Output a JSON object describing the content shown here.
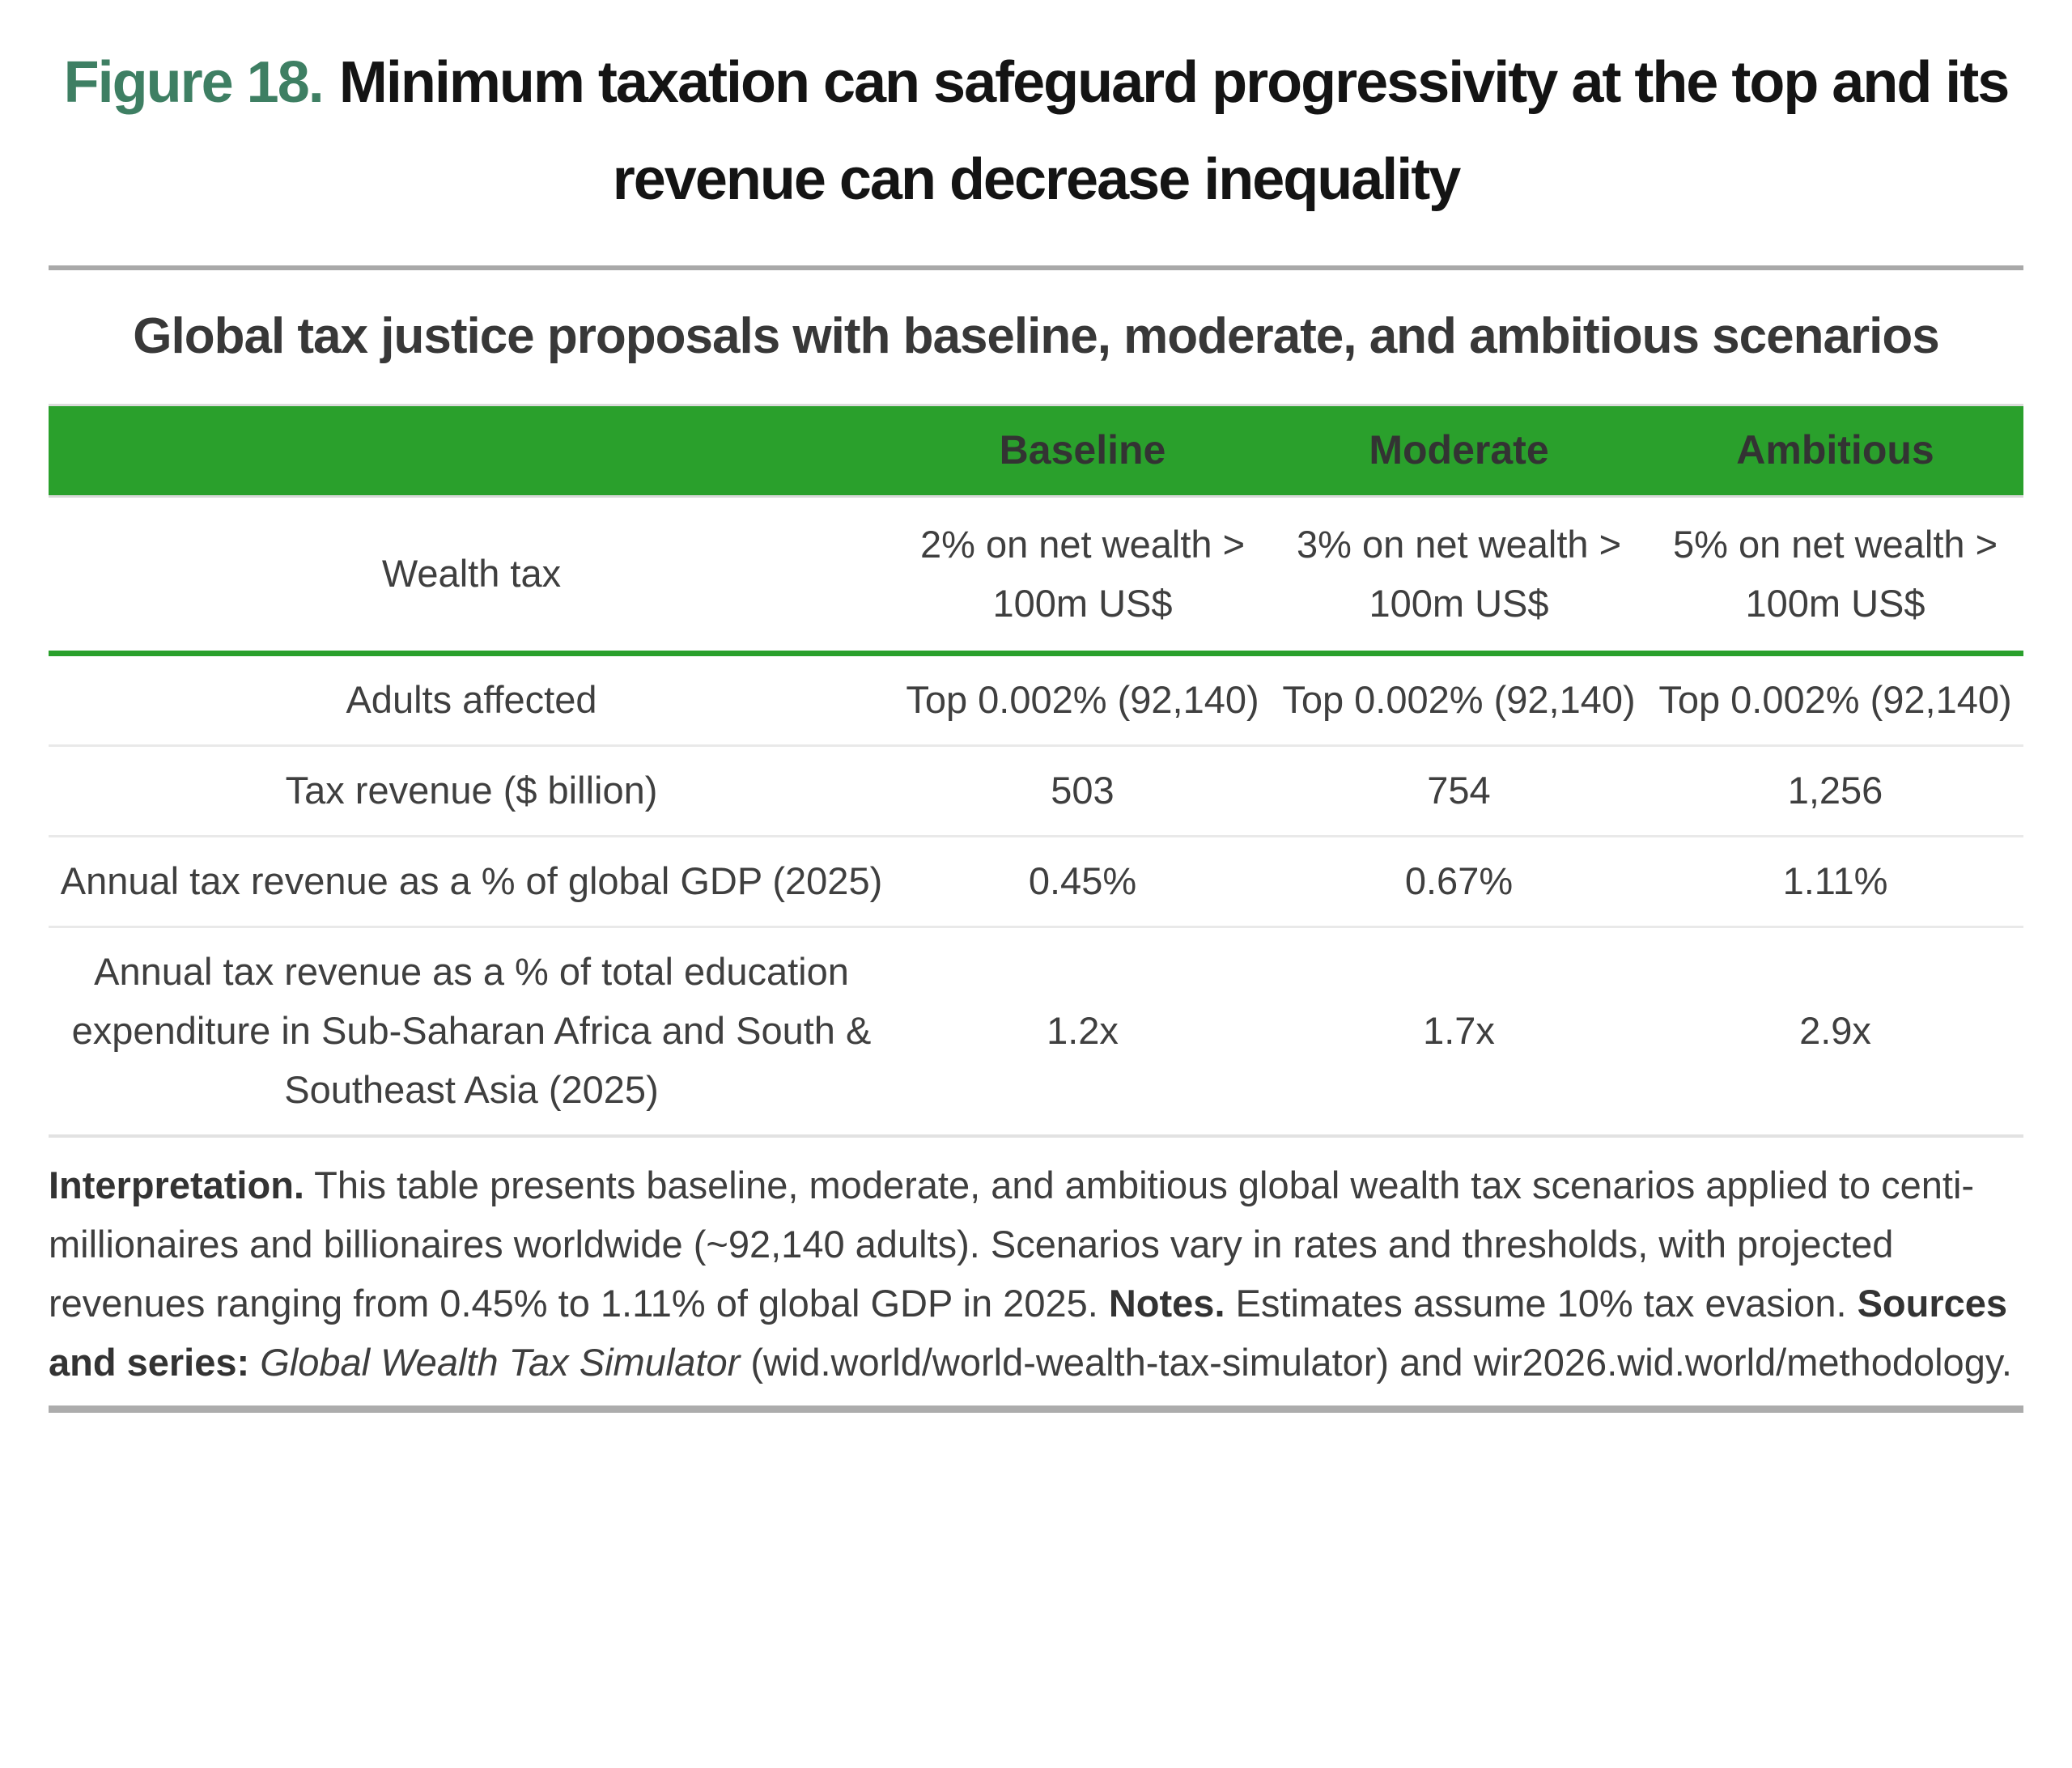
{
  "figure": {
    "label": "Figure 18.",
    "title": "Minimum taxation can safeguard progressivity at the top and its revenue can decrease inequality"
  },
  "table": {
    "title": "Global tax justice proposals with baseline, moderate, and ambitious scenarios",
    "columns": [
      "Baseline",
      "Moderate",
      "Ambitious"
    ],
    "rows": [
      {
        "label": "Wealth tax",
        "values": [
          "2% on net wealth > 100m US$",
          "3% on net wealth > 100m US$",
          "5% on net wealth > 100m US$"
        ]
      },
      {
        "label": "Adults affected",
        "values": [
          "Top 0.002% (92,140)",
          "Top 0.002% (92,140)",
          "Top 0.002% (92,140)"
        ]
      },
      {
        "label": "Tax revenue ($ billion)",
        "values": [
          "503",
          "754",
          "1,256"
        ]
      },
      {
        "label": "Annual tax revenue as a % of global GDP (2025)",
        "values": [
          "0.45%",
          "0.67%",
          "1.11%"
        ]
      },
      {
        "label": "Annual tax revenue as a % of total education expenditure in Sub-Saharan Africa and South & Southeast Asia (2025)",
        "values": [
          "1.2x",
          "1.7x",
          "2.9x"
        ]
      }
    ]
  },
  "notes": {
    "interpretation_label": "Interpretation.",
    "interpretation_text": " This table presents baseline, moderate, and ambitious global wealth tax scenarios applied to centi-millionaires and billionaires worldwide (~92,140 adults). Scenarios vary in rates and thresholds, with projected revenues ranging from 0.45% to 1.11% of global GDP in 2025. ",
    "notes_label": "Notes.",
    "notes_text": " Estimates assume 10% tax evasion. ",
    "sources_label": "Sources and series:",
    "sources_italic": " Global Wealth Tax Simulator",
    "sources_rest": " (wid.world/world-wealth-tax-simulator) and wir2026.wid.world/methodology."
  },
  "colors": {
    "header_green": "#2aa02c",
    "figure_label_green": "#3e7f63",
    "divider_gray": "#a9a9a9",
    "row_separator": "#e9e9e9",
    "title_black": "#141414",
    "body_text": "#3f3f3f"
  }
}
